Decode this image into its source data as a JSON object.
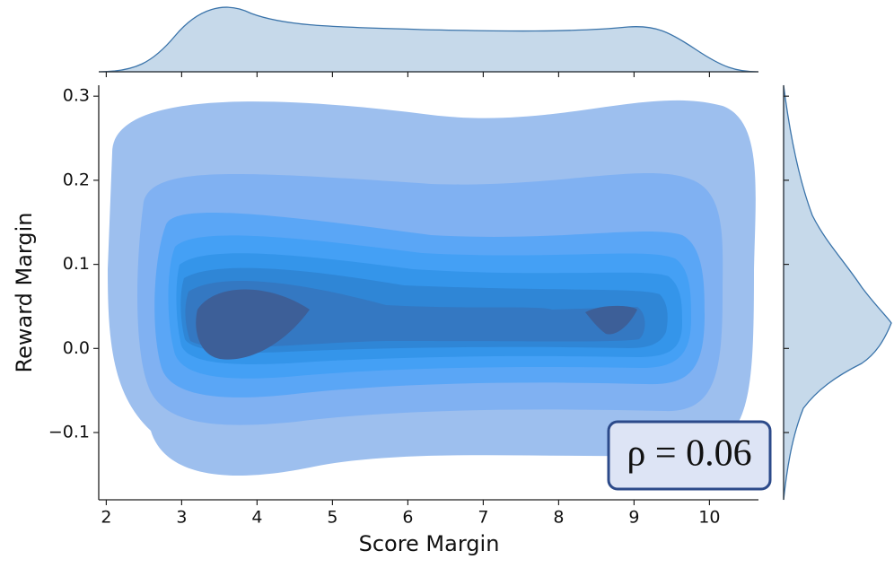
{
  "chart_data": {
    "type": "kde_joint",
    "x_label": "Score Margin",
    "y_label": "Reward Margin",
    "annotation": "ρ = 0.06",
    "xlim": [
      1.9,
      10.65
    ],
    "xticks": [
      2,
      3,
      4,
      5,
      6,
      7,
      8,
      9,
      10
    ],
    "ylim": [
      -0.18,
      0.313
    ],
    "yticks": [
      {
        "value": -0.1,
        "label": "−0.1"
      },
      {
        "value": 0.0,
        "label": "0.0"
      },
      0.1,
      0.2,
      0.3
    ],
    "color": "#4d8fe0"
  }
}
